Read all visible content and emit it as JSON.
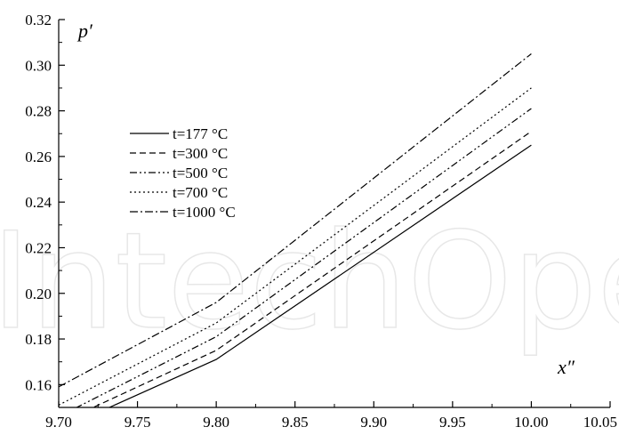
{
  "chart_data": {
    "type": "line",
    "title": "",
    "xlabel": "x″",
    "ylabel": "p′",
    "xlim": [
      9.7,
      10.05
    ],
    "ylim": [
      0.15,
      0.32
    ],
    "xticks": [
      "9.70",
      "9.75",
      "9.80",
      "9.85",
      "9.90",
      "9.95",
      "10.00",
      "10.05"
    ],
    "yticks": [
      "0.16",
      "0.18",
      "0.20",
      "0.22",
      "0.24",
      "0.26",
      "0.28",
      "0.30",
      "0.32"
    ],
    "grid": false,
    "legend_position": "upper-left",
    "series": [
      {
        "name": "t=177 °C",
        "dash": "solid",
        "x": [
          9.7,
          9.8,
          10.0
        ],
        "y": [
          0.14,
          0.171,
          0.265
        ]
      },
      {
        "name": "t=300 °C",
        "dash": "dashed",
        "x": [
          9.7,
          9.8,
          10.0
        ],
        "y": [
          0.143,
          0.175,
          0.271
        ]
      },
      {
        "name": "t=500 °C",
        "dash": "dash-dot-dot",
        "x": [
          9.7,
          9.8,
          10.0
        ],
        "y": [
          0.146,
          0.181,
          0.281
        ]
      },
      {
        "name": "t=700 °C",
        "dash": "dotted",
        "x": [
          9.7,
          9.8,
          10.0
        ],
        "y": [
          0.151,
          0.187,
          0.29
        ]
      },
      {
        "name": "t=1000 °C",
        "dash": "dash-dot",
        "x": [
          9.7,
          9.8,
          10.0
        ],
        "y": [
          0.159,
          0.196,
          0.305
        ]
      }
    ]
  },
  "watermark": {
    "text": "IntechOpen",
    "color": "#e7e7e7"
  }
}
